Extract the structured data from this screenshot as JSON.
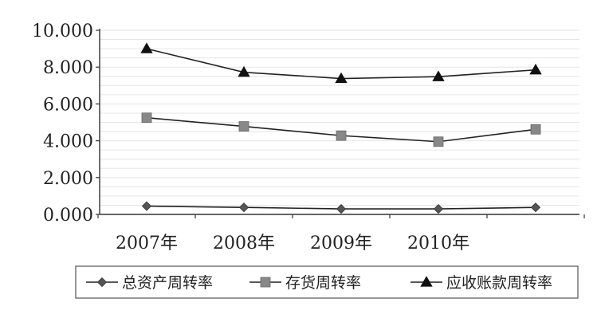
{
  "chart_data": {
    "type": "line",
    "categories": [
      "2007年",
      "2008年",
      "2009年",
      "2010年",
      ""
    ],
    "ylim": [
      0,
      10
    ],
    "yticks": [
      "0.000",
      "2.000",
      "4.000",
      "6.000",
      "8.000",
      "10.000"
    ],
    "grid": true,
    "legend_position": "bottom",
    "series": [
      {
        "name": "总资产周转率",
        "marker": "diamond",
        "values": [
          0.45,
          0.38,
          0.3,
          0.3,
          0.38
        ]
      },
      {
        "name": "存货周转率",
        "marker": "square",
        "values": [
          5.25,
          4.78,
          4.28,
          3.95,
          4.62
        ]
      },
      {
        "name": "应收账款周转率",
        "marker": "triangle",
        "values": [
          9.0,
          7.72,
          7.38,
          7.48,
          7.85
        ]
      }
    ]
  },
  "colors": {
    "line": "#222222",
    "marker": "#555555",
    "square_marker": "#888888",
    "grid": "#e6e6e6",
    "axis": "#333333"
  }
}
